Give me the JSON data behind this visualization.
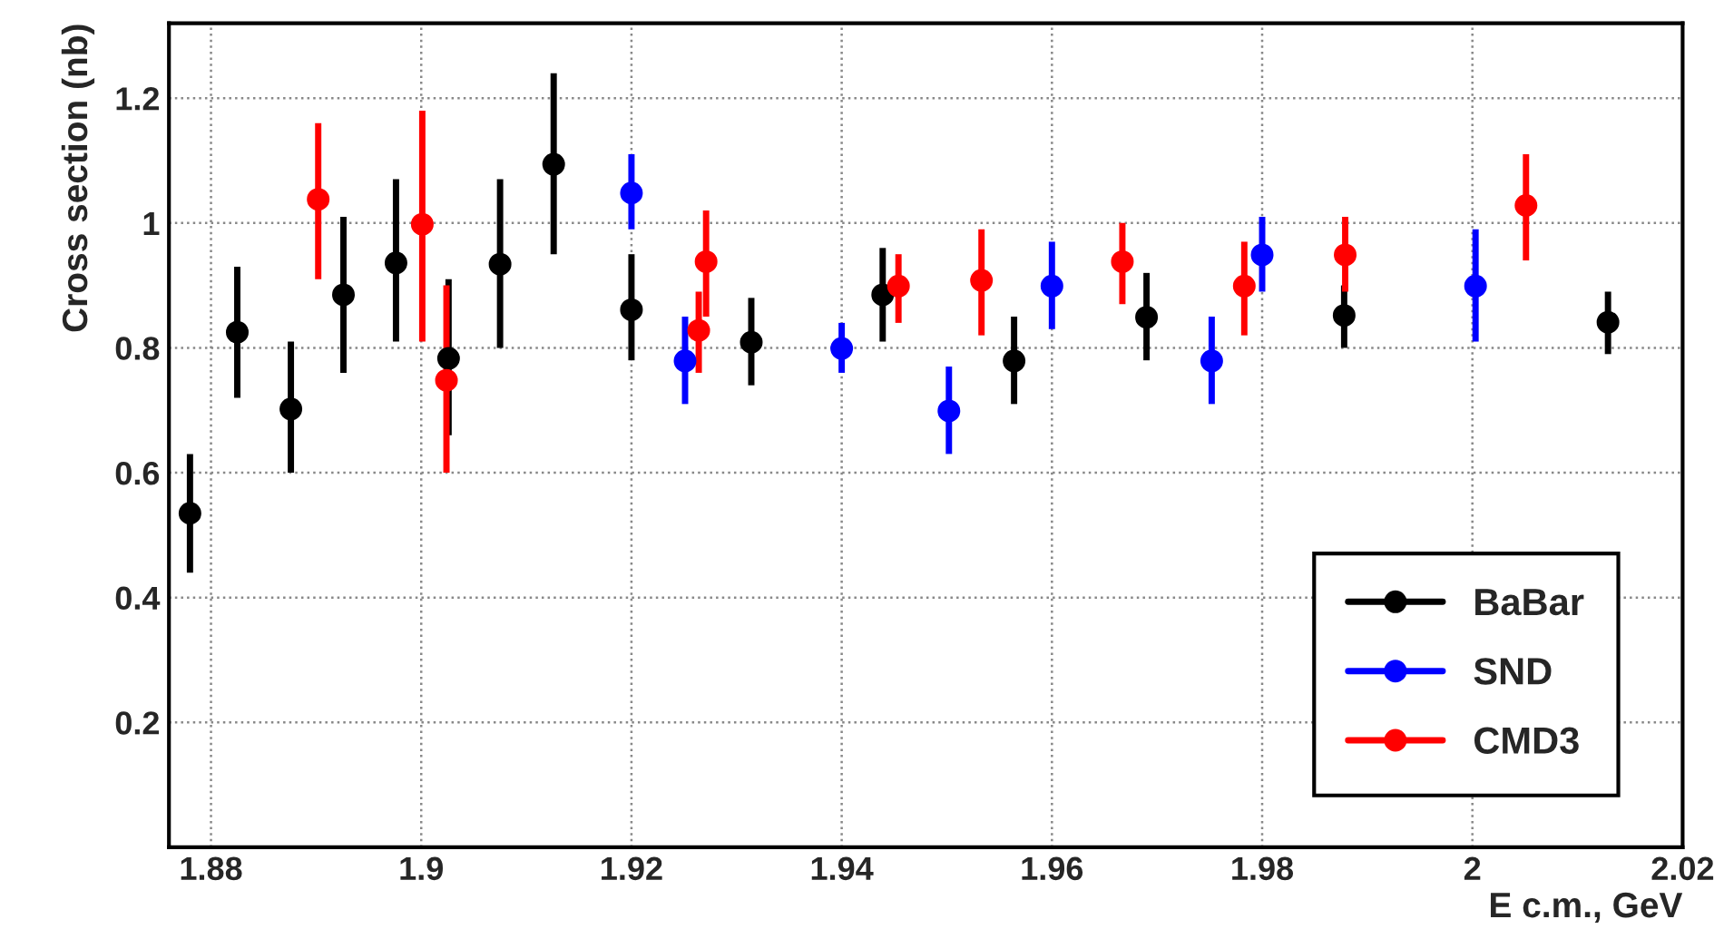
{
  "chart_data": {
    "type": "scatter",
    "xlabel": "E c.m., GeV",
    "ylabel": "Cross section (nb)",
    "xlim": [
      1.876,
      2.02
    ],
    "xticks": [
      1.88,
      1.9,
      1.92,
      1.94,
      1.96,
      1.98,
      2,
      2.02
    ],
    "ylim": [
      0,
      1.32
    ],
    "yticks": [
      0.2,
      0.4,
      0.6,
      0.8,
      1,
      1.2
    ],
    "grid": true,
    "legend": "bottom right",
    "marker": "circle",
    "series": [
      {
        "name": "BaBar",
        "color": "#000000",
        "x": [
          1.878,
          1.8825,
          1.8876,
          1.8926,
          1.8976,
          1.9026,
          1.9075,
          1.9126,
          1.92,
          1.9314,
          1.9439,
          1.9564,
          1.969,
          1.9878,
          2.0129
        ],
        "values": [
          0.535,
          0.825,
          0.702,
          0.885,
          0.936,
          0.783,
          0.934,
          1.094,
          0.861,
          0.809,
          0.885,
          0.779,
          0.849,
          0.852,
          0.841
        ],
        "errors": [
          [
            0.44,
            0.63
          ],
          [
            0.72,
            0.93
          ],
          [
            0.6,
            0.81
          ],
          [
            0.76,
            1.01
          ],
          [
            0.81,
            1.07
          ],
          [
            0.66,
            0.91
          ],
          [
            0.8,
            1.07
          ],
          [
            0.95,
            1.24
          ],
          [
            0.78,
            0.95
          ],
          [
            0.74,
            0.88
          ],
          [
            0.81,
            0.96
          ],
          [
            0.71,
            0.85
          ],
          [
            0.78,
            0.92
          ],
          [
            0.8,
            0.9
          ],
          [
            0.79,
            0.89
          ]
        ]
      },
      {
        "name": "SND",
        "color": "#0000ff",
        "x": [
          1.92,
          1.9251,
          1.94,
          1.9502,
          1.96,
          1.9752,
          1.98,
          2.0003
        ],
        "values": [
          1.048,
          0.779,
          0.799,
          0.699,
          0.899,
          0.779,
          0.949,
          0.899
        ],
        "errors": [
          [
            0.99,
            1.11
          ],
          [
            0.71,
            0.85
          ],
          [
            0.76,
            0.84
          ],
          [
            0.63,
            0.77
          ],
          [
            0.83,
            0.97
          ],
          [
            0.71,
            0.85
          ],
          [
            0.89,
            1.01
          ],
          [
            0.81,
            0.99
          ]
        ]
      },
      {
        "name": "CMD3",
        "color": "#ff0000",
        "x": [
          1.8902,
          1.9001,
          1.9024,
          1.9264,
          1.9271,
          1.9454,
          1.9533,
          1.9667,
          1.9783,
          1.9879,
          2.0051
        ],
        "values": [
          1.038,
          0.998,
          0.748,
          0.828,
          0.938,
          0.899,
          0.908,
          0.938,
          0.899,
          0.949,
          1.028
        ],
        "errors": [
          [
            0.91,
            1.16
          ],
          [
            0.81,
            1.18
          ],
          [
            0.6,
            0.9
          ],
          [
            0.76,
            0.89
          ],
          [
            0.85,
            1.02
          ],
          [
            0.84,
            0.95
          ],
          [
            0.82,
            0.99
          ],
          [
            0.87,
            1.0
          ],
          [
            0.82,
            0.97
          ],
          [
            0.89,
            1.01
          ],
          [
            0.94,
            1.11
          ]
        ]
      }
    ]
  }
}
